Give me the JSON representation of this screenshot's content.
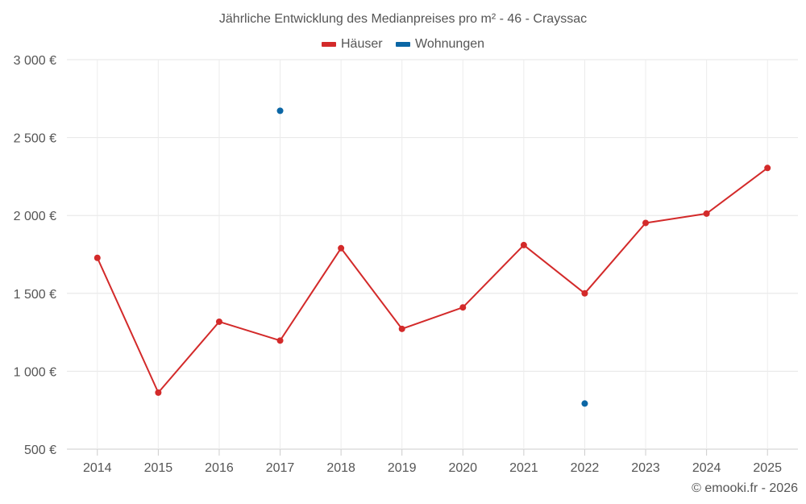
{
  "chart_data": {
    "type": "line",
    "title": "Jährliche Entwicklung des Medianpreises pro m² - 46 - Crayssac",
    "categories": [
      "2014",
      "2015",
      "2016",
      "2017",
      "2018",
      "2019",
      "2020",
      "2021",
      "2022",
      "2023",
      "2024",
      "2025"
    ],
    "series": [
      {
        "name": "Häuser",
        "color": "#d32a2a",
        "values": [
          1728,
          863,
          1318,
          1197,
          1790,
          1272,
          1410,
          1810,
          1500,
          1952,
          2012,
          2305
        ]
      },
      {
        "name": "Wohnungen",
        "color": "#0b66a5",
        "values": [
          null,
          null,
          null,
          2672,
          null,
          null,
          null,
          null,
          793,
          null,
          null,
          null
        ]
      }
    ],
    "ylim": [
      500,
      3000
    ],
    "yticks": [
      500,
      1000,
      1500,
      2000,
      2500,
      3000
    ],
    "ytick_labels": [
      "500 €",
      "1 000 €",
      "1 500 €",
      "2 000 €",
      "2 500 €",
      "3 000 €"
    ],
    "grid": true,
    "legend": "top-center",
    "xlabel": "",
    "ylabel": ""
  },
  "credit": "© emooki.fr - 2026"
}
